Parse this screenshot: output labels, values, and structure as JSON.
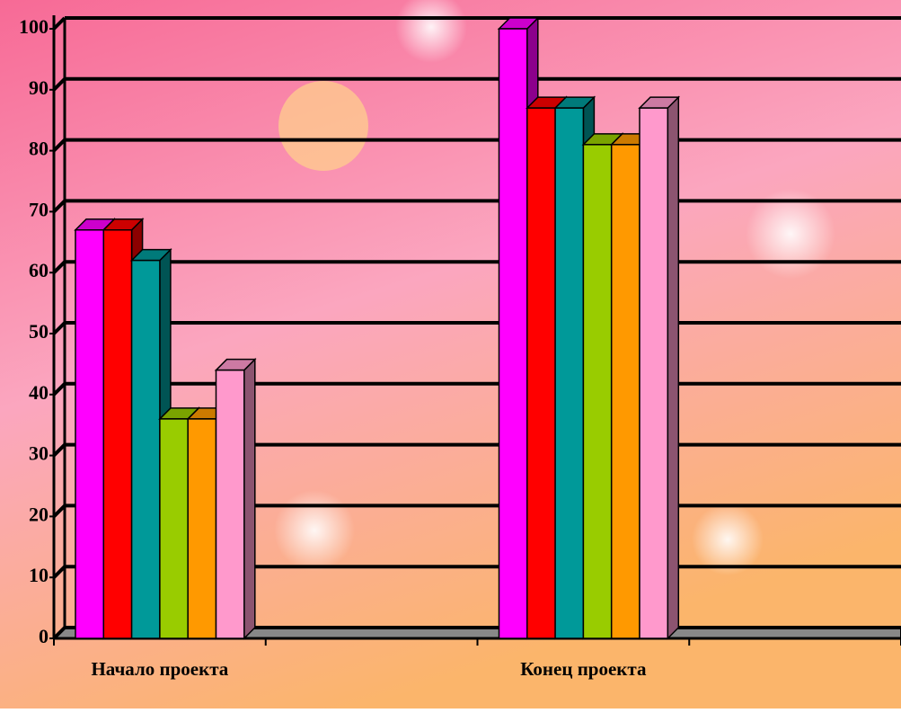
{
  "chart_data": {
    "type": "bar3d",
    "categories": [
      "Начало проекта",
      "Конец проекта"
    ],
    "series": [
      {
        "color": "#ff00ff",
        "values": [
          67,
          100
        ]
      },
      {
        "color": "#ff0000",
        "values": [
          67,
          87
        ]
      },
      {
        "color": "#009999",
        "values": [
          62,
          87
        ]
      },
      {
        "color": "#99cc00",
        "values": [
          36,
          81
        ]
      },
      {
        "color": "#ff9900",
        "values": [
          36,
          81
        ]
      },
      {
        "color": "#ff99cc",
        "values": [
          44,
          87
        ]
      }
    ],
    "ylim": [
      0,
      100
    ],
    "yticks": [
      0,
      10,
      20,
      30,
      40,
      50,
      60,
      70,
      80,
      90,
      100
    ],
    "grid": true
  }
}
